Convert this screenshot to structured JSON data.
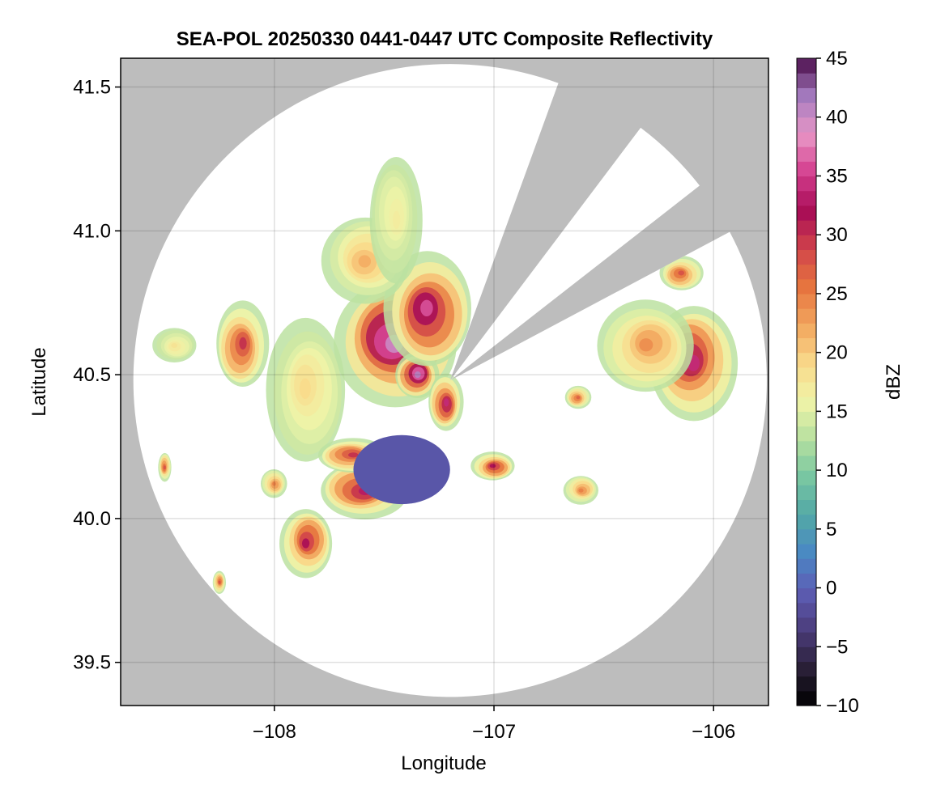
{
  "chart_data": {
    "type": "heatmap",
    "title": "SEA-POL 20250330 0441-0447 UTC Composite Reflectivity",
    "xlabel": "Longitude",
    "ylabel": "Latitude",
    "xlim": [
      -108.7,
      -105.75
    ],
    "ylim": [
      39.35,
      41.6
    ],
    "xticks": [
      -108,
      -107,
      -106
    ],
    "xtick_labels": [
      "−108",
      "−107",
      "−106"
    ],
    "yticks": [
      39.5,
      40.0,
      40.5,
      41.0,
      41.5
    ],
    "ytick_labels": [
      "39.5",
      "40.0",
      "40.5",
      "41.0",
      "41.5"
    ],
    "grid": true,
    "background_color": "#bdbdbd",
    "radar": {
      "center": [
        -107.2,
        40.48
      ],
      "range_deg_lat": 1.1,
      "blocked_sectors_deg_from_north": [
        [
          20,
          37
        ],
        [
          52,
          62
        ]
      ]
    },
    "colorbar": {
      "label": "dBZ",
      "min": -10,
      "max": 45,
      "step": 1.25,
      "ticks": [
        -10,
        -5,
        0,
        5,
        10,
        15,
        20,
        25,
        30,
        35,
        40,
        45
      ],
      "tick_labels": [
        "−10",
        "−5",
        "0",
        "5",
        "10",
        "15",
        "20",
        "25",
        "30",
        "35",
        "40",
        "45"
      ],
      "colormap": [
        "#000000",
        "#2a2038",
        "#4c3d7c",
        "#5d5db4",
        "#4a88c4",
        "#52a8a6",
        "#78c6a2",
        "#b6e0a0",
        "#f0f4a8",
        "#f9d98a",
        "#f2a65e",
        "#e6753f",
        "#d1444a",
        "#a80c56",
        "#d43e8e",
        "#e896c6",
        "#a57cc0",
        "#4a0c4a"
      ]
    },
    "echo_cells": [
      {
        "lon": -107.45,
        "lat": 40.62,
        "rlon": 0.28,
        "rlat": 0.22,
        "peak_dbz": 40
      },
      {
        "lon": -107.35,
        "lat": 40.5,
        "rlon": 0.1,
        "rlat": 0.08,
        "peak_dbz": 41
      },
      {
        "lon": -107.3,
        "lat": 40.72,
        "rlon": 0.2,
        "rlat": 0.2,
        "peak_dbz": 36
      },
      {
        "lon": -107.22,
        "lat": 40.4,
        "rlon": 0.08,
        "rlat": 0.1,
        "peak_dbz": 34
      },
      {
        "lon": -107.58,
        "lat": 40.9,
        "rlon": 0.2,
        "rlat": 0.15,
        "peak_dbz": 22
      },
      {
        "lon": -107.45,
        "lat": 41.05,
        "rlon": 0.12,
        "rlat": 0.22,
        "peak_dbz": 17
      },
      {
        "lon": -107.85,
        "lat": 40.45,
        "rlon": 0.18,
        "rlat": 0.25,
        "peak_dbz": 19
      },
      {
        "lon": -108.15,
        "lat": 40.6,
        "rlon": 0.12,
        "rlat": 0.15,
        "peak_dbz": 30
      },
      {
        "lon": -108.45,
        "lat": 40.6,
        "rlon": 0.1,
        "rlat": 0.06,
        "peak_dbz": 18
      },
      {
        "lon": -107.6,
        "lat": 40.1,
        "rlon": 0.2,
        "rlat": 0.1,
        "peak_dbz": 33
      },
      {
        "lon": -107.85,
        "lat": 39.92,
        "rlon": 0.12,
        "rlat": 0.12,
        "peak_dbz": 32
      },
      {
        "lon": -107.65,
        "lat": 40.22,
        "rlon": 0.16,
        "rlat": 0.06,
        "peak_dbz": 30
      },
      {
        "lon": -107.0,
        "lat": 40.18,
        "rlon": 0.1,
        "rlat": 0.05,
        "peak_dbz": 32
      },
      {
        "lon": -106.62,
        "lat": 40.42,
        "rlon": 0.06,
        "rlat": 0.04,
        "peak_dbz": 27
      },
      {
        "lon": -106.6,
        "lat": 40.1,
        "rlon": 0.08,
        "rlat": 0.05,
        "peak_dbz": 25
      },
      {
        "lon": -106.1,
        "lat": 40.55,
        "rlon": 0.2,
        "rlat": 0.2,
        "peak_dbz": 34
      },
      {
        "lon": -106.3,
        "lat": 40.6,
        "rlon": 0.22,
        "rlat": 0.16,
        "peak_dbz": 24
      },
      {
        "lon": -106.15,
        "lat": 40.85,
        "rlon": 0.1,
        "rlat": 0.06,
        "peak_dbz": 28
      },
      {
        "lon": -108.0,
        "lat": 40.12,
        "rlon": 0.06,
        "rlat": 0.05,
        "peak_dbz": 25
      },
      {
        "lon": -108.5,
        "lat": 40.18,
        "rlon": 0.03,
        "rlat": 0.05,
        "peak_dbz": 28
      },
      {
        "lon": -108.25,
        "lat": 39.78,
        "rlon": 0.03,
        "rlat": 0.04,
        "peak_dbz": 28
      }
    ],
    "low_echo_regions": [
      {
        "lon": -107.42,
        "lat": 40.17,
        "rlon": 0.22,
        "rlat": 0.12,
        "dbz": -1
      }
    ]
  }
}
